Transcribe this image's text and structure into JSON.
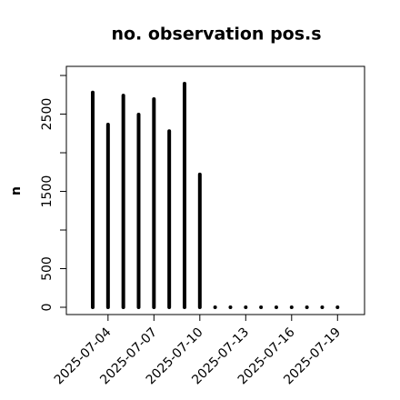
{
  "chart_data": {
    "type": "needle",
    "title": "no. observation pos.s",
    "y_label": "n",
    "x": [
      "2025-07-03",
      "2025-07-04",
      "2025-07-05",
      "2025-07-06",
      "2025-07-07",
      "2025-07-08",
      "2025-07-09",
      "2025-07-10",
      "2025-07-11",
      "2025-07-12",
      "2025-07-13",
      "2025-07-14",
      "2025-07-15",
      "2025-07-16",
      "2025-07-17",
      "2025-07-18",
      "2025-07-19"
    ],
    "values": [
      2780,
      2365,
      2740,
      2495,
      2695,
      2280,
      2895,
      1720,
      0,
      0,
      0,
      0,
      0,
      0,
      0,
      0,
      0
    ],
    "color": "#000000",
    "xticks": [
      "2025-07-04",
      "2025-07-07",
      "2025-07-10",
      "2025-07-13",
      "2025-07-16",
      "2025-07-19"
    ],
    "xtick_colors": [
      "#000000",
      "#000000",
      "#228b22",
      "#000000",
      "#000000",
      "#000000"
    ],
    "ylim": [
      -94,
      3118
    ],
    "yticks": [
      0,
      500,
      1500,
      2500
    ],
    "yminor_ticks": [
      1000,
      2000,
      3000
    ]
  }
}
